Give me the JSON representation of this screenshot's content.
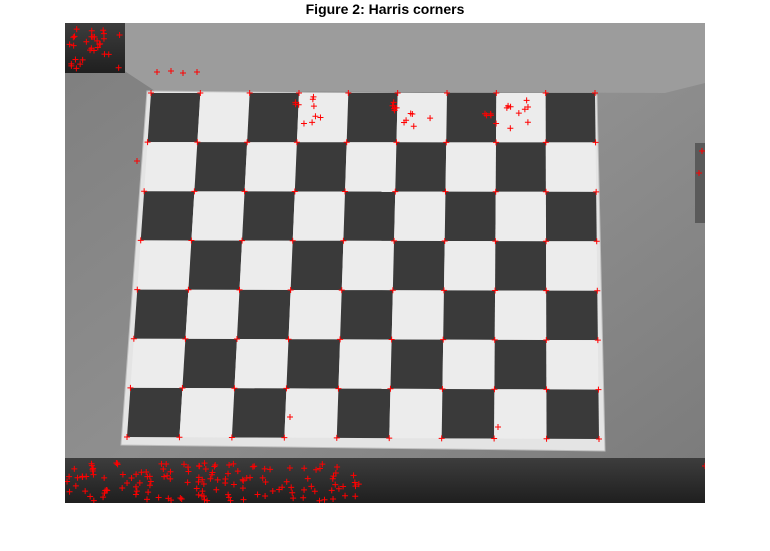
{
  "figure": {
    "title": "Figure 2: Harris corners"
  },
  "image": {
    "description_icon": "checkerboard-photo",
    "board": {
      "rows": 7,
      "cols": 9,
      "first_square": "dark"
    },
    "colors": {
      "background": "#8a8a8a",
      "desk_dark": "#2e2e2e",
      "paper": "#e6e6e6",
      "dark_square": "#3a3a3a",
      "light_square": "#ececec",
      "marker": "#ff0000"
    }
  }
}
